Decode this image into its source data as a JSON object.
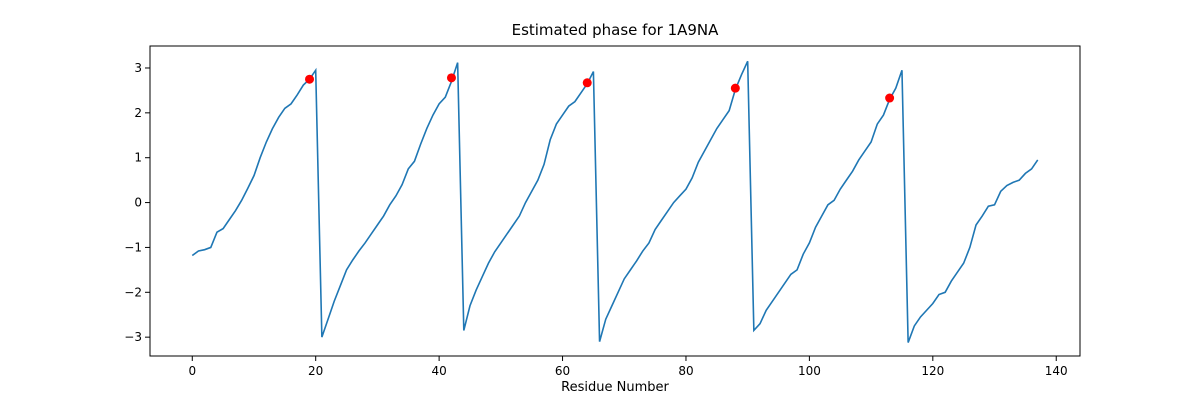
{
  "chart_data": {
    "type": "line",
    "title": "Estimated phase for 1A9NA",
    "xlabel": "Residue Number",
    "x": [
      0,
      1,
      2,
      3,
      4,
      5,
      6,
      7,
      8,
      9,
      10,
      11,
      12,
      13,
      14,
      15,
      16,
      17,
      18,
      19,
      20,
      21,
      22,
      23,
      24,
      25,
      26,
      27,
      28,
      29,
      30,
      31,
      32,
      33,
      34,
      35,
      36,
      37,
      38,
      39,
      40,
      41,
      42,
      43,
      44,
      45,
      46,
      47,
      48,
      49,
      50,
      51,
      52,
      53,
      54,
      55,
      56,
      57,
      58,
      59,
      60,
      61,
      62,
      63,
      64,
      65,
      66,
      67,
      68,
      69,
      70,
      71,
      72,
      73,
      74,
      75,
      76,
      77,
      78,
      79,
      80,
      81,
      82,
      83,
      84,
      85,
      86,
      87,
      88,
      89,
      90,
      91,
      92,
      93,
      94,
      95,
      96,
      97,
      98,
      99,
      100,
      101,
      102,
      103,
      104,
      105,
      106,
      107,
      108,
      109,
      110,
      111,
      112,
      113,
      114,
      115,
      116,
      117,
      118,
      119,
      120,
      121,
      122,
      123,
      124,
      125,
      126,
      127,
      128,
      129,
      130,
      131,
      132,
      133,
      134,
      135,
      136,
      137
    ],
    "series": [
      {
        "color": "#1f77b4",
        "values": [
          -1.18,
          -1.08,
          -1.05,
          -1.0,
          -0.66,
          -0.58,
          -0.38,
          -0.18,
          0.05,
          0.32,
          0.6,
          1.0,
          1.35,
          1.65,
          1.9,
          2.1,
          2.2,
          2.4,
          2.62,
          2.75,
          2.95,
          -3.0,
          -2.6,
          -2.2,
          -1.85,
          -1.5,
          -1.28,
          -1.08,
          -0.9,
          -0.7,
          -0.5,
          -0.3,
          -0.05,
          0.15,
          0.4,
          0.75,
          0.92,
          1.3,
          1.65,
          1.95,
          2.2,
          2.35,
          2.7,
          3.12,
          -2.85,
          -2.3,
          -1.95,
          -1.65,
          -1.35,
          -1.1,
          -0.9,
          -0.7,
          -0.5,
          -0.3,
          0.0,
          0.25,
          0.5,
          0.85,
          1.4,
          1.75,
          1.95,
          2.15,
          2.25,
          2.45,
          2.65,
          2.92,
          -3.1,
          -2.6,
          -2.3,
          -2.0,
          -1.7,
          -1.5,
          -1.3,
          -1.08,
          -0.9,
          -0.6,
          -0.4,
          -0.2,
          0.0,
          0.15,
          0.3,
          0.55,
          0.9,
          1.15,
          1.4,
          1.65,
          1.85,
          2.05,
          2.52,
          2.85,
          3.15,
          -2.85,
          -2.7,
          -2.4,
          -2.2,
          -2.0,
          -1.8,
          -1.6,
          -1.5,
          -1.15,
          -0.9,
          -0.55,
          -0.3,
          -0.05,
          0.05,
          0.3,
          0.5,
          0.7,
          0.95,
          1.15,
          1.35,
          1.75,
          1.95,
          2.3,
          2.55,
          2.95,
          -3.12,
          -2.75,
          -2.55,
          -2.4,
          -2.25,
          -2.05,
          -2.0,
          -1.75,
          -1.55,
          -1.35,
          -1.0,
          -0.5,
          -0.3,
          -0.08,
          -0.05,
          0.25,
          0.38,
          0.45,
          0.5,
          0.65,
          0.75,
          0.95
        ]
      }
    ],
    "points": {
      "color": "#ff0000",
      "x": [
        19,
        42,
        64,
        88,
        113
      ],
      "values": [
        2.75,
        2.78,
        2.67,
        2.55,
        2.33
      ]
    },
    "xlim": [
      -6.85,
      143.85
    ],
    "ylim": [
      -3.42,
      3.49
    ],
    "xticks": [
      0,
      20,
      40,
      60,
      80,
      100,
      120,
      140
    ],
    "yticks": [
      {
        "value": -3,
        "label": "−3"
      },
      {
        "value": -2,
        "label": "−2"
      },
      {
        "value": -1,
        "label": "−1"
      },
      0,
      1,
      2,
      3
    ]
  }
}
